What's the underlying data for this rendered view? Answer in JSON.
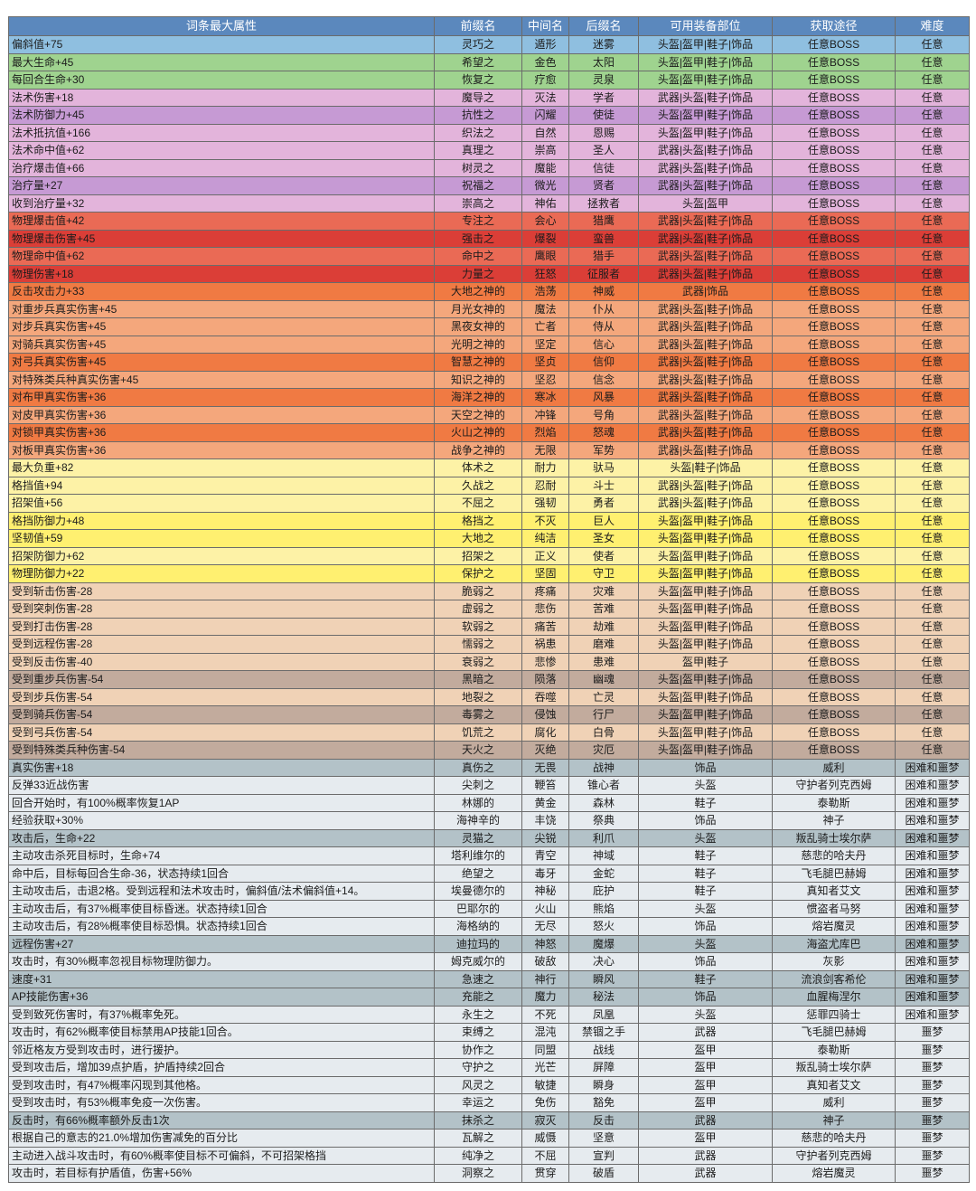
{
  "columns": [
    "词条最大属性",
    "前缀名",
    "中间名",
    "后缀名",
    "可用装备部位",
    "获取途径",
    "难度"
  ],
  "rows": [
    [
      "偏斜值+75",
      "灵巧之",
      "遁形",
      "迷雾",
      "头盔|盔甲|鞋子|饰品",
      "任意BOSS",
      "任意"
    ],
    [
      "最大生命+45",
      "希望之",
      "金色",
      "太阳",
      "头盔|盔甲|鞋子|饰品",
      "任意BOSS",
      "任意"
    ],
    [
      "每回合生命+30",
      "恢复之",
      "疗愈",
      "灵泉",
      "头盔|盔甲|鞋子|饰品",
      "任意BOSS",
      "任意"
    ],
    [
      "法术伤害+18",
      "魔导之",
      "灭法",
      "学者",
      "武器|头盔|鞋子|饰品",
      "任意BOSS",
      "任意"
    ],
    [
      "法术防御力+45",
      "抗性之",
      "闪耀",
      "使徒",
      "头盔|盔甲|鞋子|饰品",
      "任意BOSS",
      "任意"
    ],
    [
      "法术抵抗值+166",
      "织法之",
      "自然",
      "恩赐",
      "头盔|盔甲|鞋子|饰品",
      "任意BOSS",
      "任意"
    ],
    [
      "法术命中值+62",
      "真理之",
      "崇高",
      "圣人",
      "武器|头盔|鞋子|饰品",
      "任意BOSS",
      "任意"
    ],
    [
      "治疗爆击值+66",
      "树灵之",
      "魔能",
      "信徒",
      "武器|头盔|鞋子|饰品",
      "任意BOSS",
      "任意"
    ],
    [
      "治疗量+27",
      "祝福之",
      "微光",
      "贤者",
      "武器|头盔|鞋子|饰品",
      "任意BOSS",
      "任意"
    ],
    [
      "收到治疗量+32",
      "崇高之",
      "神佑",
      "拯救者",
      "头盔|盔甲",
      "任意BOSS",
      "任意"
    ],
    [
      "物理爆击值+42",
      "专注之",
      "会心",
      "猎鹰",
      "武器|头盔|鞋子|饰品",
      "任意BOSS",
      "任意"
    ],
    [
      "物理爆击伤害+45",
      "强击之",
      "爆裂",
      "蛮兽",
      "武器|头盔|鞋子|饰品",
      "任意BOSS",
      "任意"
    ],
    [
      "物理命中值+62",
      "命中之",
      "鹰眼",
      "猎手",
      "武器|头盔|鞋子|饰品",
      "任意BOSS",
      "任意"
    ],
    [
      "物理伤害+18",
      "力量之",
      "狂怒",
      "征服者",
      "武器|头盔|鞋子|饰品",
      "任意BOSS",
      "任意"
    ],
    [
      "反击攻击力+33",
      "大地之神的",
      "浩荡",
      "神威",
      "武器|饰品",
      "任意BOSS",
      "任意"
    ],
    [
      "对重步兵真实伤害+45",
      "月光女神的",
      "魔法",
      "仆从",
      "武器|头盔|鞋子|饰品",
      "任意BOSS",
      "任意"
    ],
    [
      "对步兵真实伤害+45",
      "黑夜女神的",
      "亡者",
      "侍从",
      "武器|头盔|鞋子|饰品",
      "任意BOSS",
      "任意"
    ],
    [
      "对骑兵真实伤害+45",
      "光明之神的",
      "坚定",
      "信心",
      "武器|头盔|鞋子|饰品",
      "任意BOSS",
      "任意"
    ],
    [
      "对弓兵真实伤害+45",
      "智慧之神的",
      "坚贞",
      "信仰",
      "武器|头盔|鞋子|饰品",
      "任意BOSS",
      "任意"
    ],
    [
      "对特殊类兵种真实伤害+45",
      "知识之神的",
      "坚忍",
      "信念",
      "武器|头盔|鞋子|饰品",
      "任意BOSS",
      "任意"
    ],
    [
      "对布甲真实伤害+36",
      "海洋之神的",
      "寒冰",
      "风暴",
      "武器|头盔|鞋子|饰品",
      "任意BOSS",
      "任意"
    ],
    [
      "对皮甲真实伤害+36",
      "天空之神的",
      "冲锋",
      "号角",
      "武器|头盔|鞋子|饰品",
      "任意BOSS",
      "任意"
    ],
    [
      "对锁甲真实伤害+36",
      "火山之神的",
      "烈焰",
      "怒魂",
      "武器|头盔|鞋子|饰品",
      "任意BOSS",
      "任意"
    ],
    [
      "对板甲真实伤害+36",
      "战争之神的",
      "无限",
      "军势",
      "武器|头盔|鞋子|饰品",
      "任意BOSS",
      "任意"
    ],
    [
      "最大负重+82",
      "体术之",
      "耐力",
      "驮马",
      "头盔|鞋子|饰品",
      "任意BOSS",
      "任意"
    ],
    [
      "格挡值+94",
      "久战之",
      "忍耐",
      "斗士",
      "武器|头盔|鞋子|饰品",
      "任意BOSS",
      "任意"
    ],
    [
      "招架值+56",
      "不屈之",
      "强韧",
      "勇者",
      "武器|头盔|鞋子|饰品",
      "任意BOSS",
      "任意"
    ],
    [
      "格挡防御力+48",
      "格挡之",
      "不灭",
      "巨人",
      "头盔|盔甲|鞋子|饰品",
      "任意BOSS",
      "任意"
    ],
    [
      "坚韧值+59",
      "大地之",
      "纯洁",
      "圣女",
      "头盔|盔甲|鞋子|饰品",
      "任意BOSS",
      "任意"
    ],
    [
      "招架防御力+62",
      "招架之",
      "正义",
      "使者",
      "头盔|盔甲|鞋子|饰品",
      "任意BOSS",
      "任意"
    ],
    [
      "物理防御力+22",
      "保护之",
      "坚固",
      "守卫",
      "头盔|盔甲|鞋子|饰品",
      "任意BOSS",
      "任意"
    ],
    [
      "受到斩击伤害-28",
      "脆弱之",
      "疼痛",
      "灾难",
      "头盔|盔甲|鞋子|饰品",
      "任意BOSS",
      "任意"
    ],
    [
      "受到突刺伤害-28",
      "虚弱之",
      "悲伤",
      "苦难",
      "头盔|盔甲|鞋子|饰品",
      "任意BOSS",
      "任意"
    ],
    [
      "受到打击伤害-28",
      "软弱之",
      "痛苦",
      "劫难",
      "头盔|盔甲|鞋子|饰品",
      "任意BOSS",
      "任意"
    ],
    [
      "受到远程伤害-28",
      "懦弱之",
      "祸患",
      "磨难",
      "头盔|盔甲|鞋子|饰品",
      "任意BOSS",
      "任意"
    ],
    [
      "受到反击伤害-40",
      "衰弱之",
      "悲惨",
      "患难",
      "盔甲|鞋子",
      "任意BOSS",
      "任意"
    ],
    [
      "受到重步兵伤害-54",
      "黑暗之",
      "陨落",
      "幽魂",
      "头盔|盔甲|鞋子|饰品",
      "任意BOSS",
      "任意"
    ],
    [
      "受到步兵伤害-54",
      "地裂之",
      "吞噬",
      "亡灵",
      "头盔|盔甲|鞋子|饰品",
      "任意BOSS",
      "任意"
    ],
    [
      "受到骑兵伤害-54",
      "毒雾之",
      "侵蚀",
      "行尸",
      "头盔|盔甲|鞋子|饰品",
      "任意BOSS",
      "任意"
    ],
    [
      "受到弓兵伤害-54",
      "饥荒之",
      "腐化",
      "白骨",
      "头盔|盔甲|鞋子|饰品",
      "任意BOSS",
      "任意"
    ],
    [
      "受到特殊类兵种伤害-54",
      "天火之",
      "灭绝",
      "灾厄",
      "头盔|盔甲|鞋子|饰品",
      "任意BOSS",
      "任意"
    ],
    [
      "真实伤害+18",
      "真伤之",
      "无畏",
      "战神",
      "饰品",
      "威利",
      "困难和噩梦"
    ],
    [
      "反弹33近战伤害",
      "尖刺之",
      "鞭笞",
      "锥心者",
      "头盔",
      "守护者列克西姆",
      "困难和噩梦"
    ],
    [
      "回合开始时，有100%概率恢复1AP",
      "林娜的",
      "黄金",
      "森林",
      "鞋子",
      "泰勒斯",
      "困难和噩梦"
    ],
    [
      "经验获取+30%",
      "海神辛的",
      "丰饶",
      "祭典",
      "饰品",
      "神子",
      "困难和噩梦"
    ],
    [
      "攻击后，生命+22",
      "灵猫之",
      "尖锐",
      "利爪",
      "头盔",
      "叛乱骑士埃尔萨",
      "困难和噩梦"
    ],
    [
      "主动攻击杀死目标时，生命+74",
      "塔利维尔的",
      "青空",
      "神域",
      "鞋子",
      "慈悲的哈夫丹",
      "困难和噩梦"
    ],
    [
      "命中后，目标每回合生命-36，状态持续1回合",
      "绝望之",
      "毒牙",
      "金蛇",
      "鞋子",
      "飞毛腿巴赫姆",
      "困难和噩梦"
    ],
    [
      "主动攻击后，击退2格。受到远程和法术攻击时，偏斜值/法术偏斜值+14。",
      "埃曼德尔的",
      "神秘",
      "庇护",
      "鞋子",
      "真知者艾文",
      "困难和噩梦"
    ],
    [
      "主动攻击后，有37%概率使目标昏迷。状态持续1回合",
      "巴耶尔的",
      "火山",
      "熊焰",
      "头盔",
      "惯盗者马努",
      "困难和噩梦"
    ],
    [
      "主动攻击后，有28%概率使目标恐惧。状态持续1回合",
      "海格纳的",
      "无尽",
      "怒火",
      "饰品",
      "熔岩魔灵",
      "困难和噩梦"
    ],
    [
      "远程伤害+27",
      "迪拉玛的",
      "神怒",
      "魔爆",
      "头盔",
      "海盗尤库巴",
      "困难和噩梦"
    ],
    [
      "攻击时，有30%概率忽视目标物理防御力。",
      "姆克威尔的",
      "破敌",
      "决心",
      "饰品",
      "灰影",
      "困难和噩梦"
    ],
    [
      "速度+31",
      "急速之",
      "神行",
      "瞬风",
      "鞋子",
      "流浪剑客希伦",
      "困难和噩梦"
    ],
    [
      "AP技能伤害+36",
      "充能之",
      "魔力",
      "秘法",
      "饰品",
      "血腥梅涅尔",
      "困难和噩梦"
    ],
    [
      "受到致死伤害时，有37%概率免死。",
      "永生之",
      "不死",
      "凤凰",
      "头盔",
      "惩罪四骑士",
      "困难和噩梦"
    ],
    [
      "攻击时，有62%概率使目标禁用AP技能1回合。",
      "束缚之",
      "混沌",
      "禁锢之手",
      "武器",
      "飞毛腿巴赫姆",
      "噩梦"
    ],
    [
      "邻近格友方受到攻击时，进行援护。",
      "协作之",
      "同盟",
      "战线",
      "盔甲",
      "泰勒斯",
      "噩梦"
    ],
    [
      "受到攻击后，增加39点护盾，护盾持续2回合",
      "守护之",
      "光芒",
      "屏障",
      "盔甲",
      "叛乱骑士埃尔萨",
      "噩梦"
    ],
    [
      "受到攻击时，有47%概率闪现到其他格。",
      "风灵之",
      "敏捷",
      "瞬身",
      "盔甲",
      "真知者艾文",
      "噩梦"
    ],
    [
      "受到攻击时，有53%概率免疫一次伤害。",
      "幸运之",
      "免伤",
      "豁免",
      "盔甲",
      "威利",
      "噩梦"
    ],
    [
      "反击时，有66%概率额外反击1次",
      "抹杀之",
      "寂灭",
      "反击",
      "武器",
      "神子",
      "噩梦"
    ],
    [
      "根据自己的意志的21.0%增加伤害减免的百分比",
      "瓦解之",
      "威慑",
      "坚意",
      "盔甲",
      "慈悲的哈夫丹",
      "噩梦"
    ],
    [
      "主动进入战斗攻击时，有60%概率使目标不可偏斜，不可招架格挡",
      "纯净之",
      "不屈",
      "宣判",
      "武器",
      "守护者列克西姆",
      "噩梦"
    ],
    [
      "攻击时，若目标有护盾值，伤害+56%",
      "洞察之",
      "贯穿",
      "破盾",
      "武器",
      "熔岩魔灵",
      "噩梦"
    ]
  ],
  "row_groups": [
    "blue",
    "green",
    "green",
    "pink",
    "purple",
    "pink",
    "pink",
    "pink",
    "purple",
    "pink",
    "red1",
    "red2",
    "red1",
    "red2",
    "orange",
    "salmon",
    "salmon",
    "salmon",
    "orange",
    "salmon",
    "orange",
    "salmon",
    "orange",
    "salmon",
    "yellow2",
    "yellow2",
    "yellow2",
    "yellow",
    "yellow",
    "yellow2",
    "yellow",
    "tan",
    "tan",
    "tan",
    "tan",
    "tan",
    "brown",
    "tan",
    "brown",
    "tan",
    "brown",
    "gray",
    "light",
    "light",
    "light",
    "gray",
    "light",
    "light",
    "light",
    "light",
    "light",
    "gray",
    "light",
    "gray",
    "gray",
    "light",
    "light",
    "light",
    "light",
    "light",
    "light",
    "gray",
    "light",
    "light",
    "light"
  ]
}
